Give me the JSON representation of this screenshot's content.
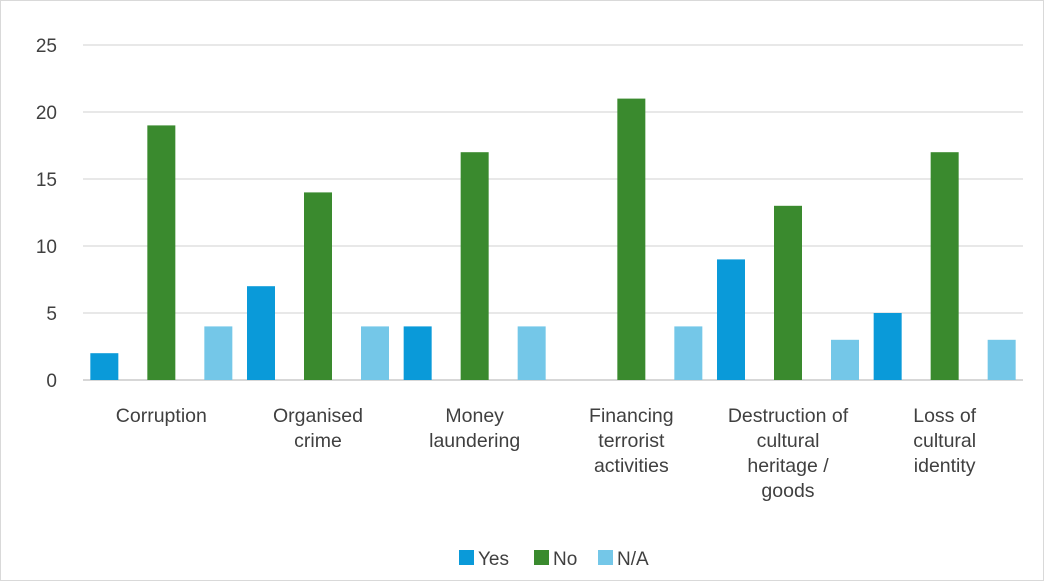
{
  "chart_data": {
    "type": "bar",
    "title": "",
    "xlabel": "",
    "ylabel": "",
    "categories": [
      [
        "Corruption"
      ],
      [
        "Organised",
        "crime"
      ],
      [
        "Money",
        "laundering"
      ],
      [
        "Financing",
        "terrorist",
        "activities"
      ],
      [
        "Destruction of",
        "cultural",
        "heritage /",
        "goods"
      ],
      [
        "Loss of",
        "cultural",
        "identity"
      ]
    ],
    "series": [
      {
        "name": "Yes",
        "color": "#0a9ad9",
        "values": [
          2,
          7,
          4,
          0,
          9,
          5
        ]
      },
      {
        "name": "No",
        "color": "#3a8a2e",
        "values": [
          19,
          14,
          17,
          21,
          13,
          17
        ]
      },
      {
        "name": "N/A",
        "color": "#74c7e8",
        "values": [
          4,
          4,
          4,
          4,
          3,
          3
        ]
      }
    ],
    "ylim": [
      0,
      25
    ],
    "yticks": [
      0,
      5,
      10,
      15,
      20,
      25
    ],
    "grid": true,
    "gridline_color": "#d9d9d9",
    "legend_position": "bottom"
  }
}
